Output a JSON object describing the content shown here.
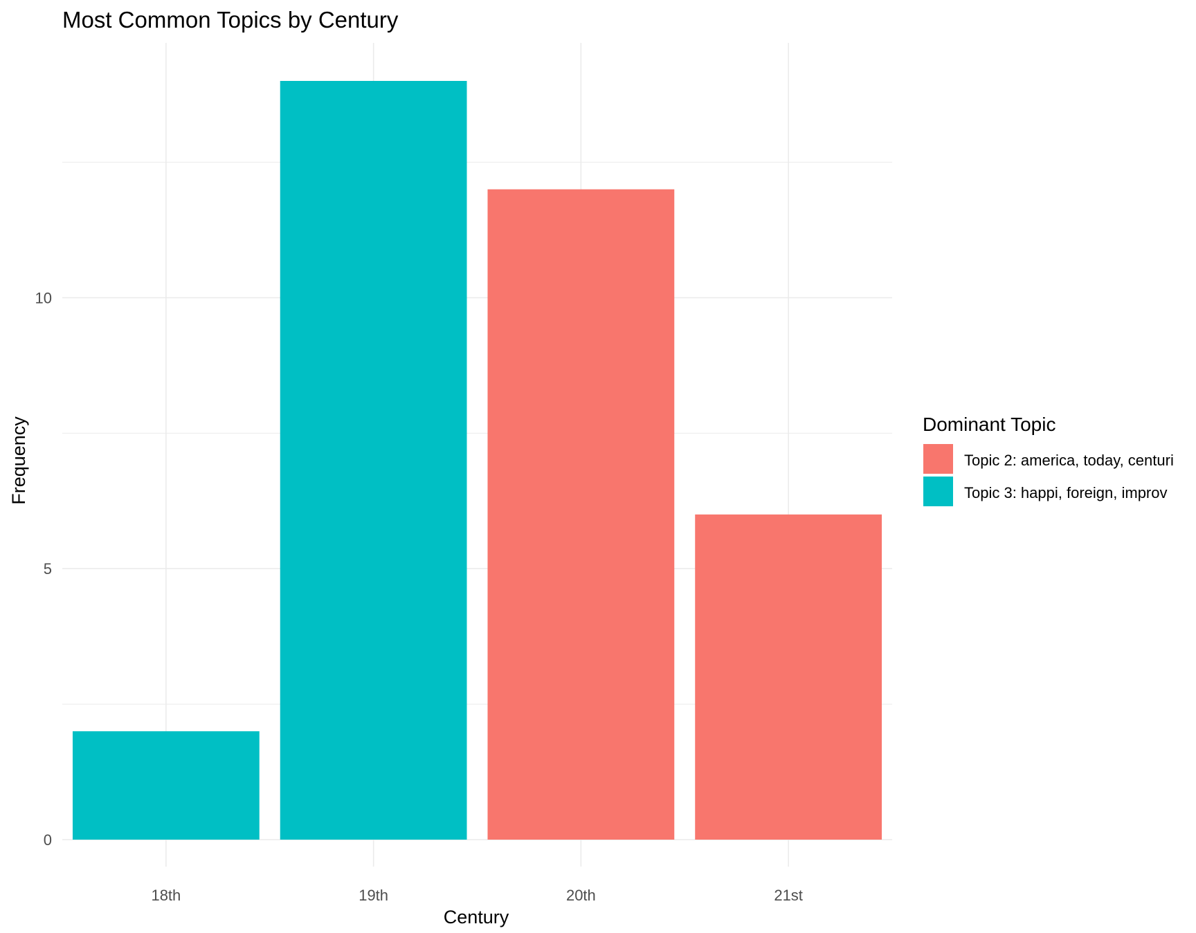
{
  "chart_data": {
    "type": "bar",
    "title": "Most Common Topics by Century",
    "xlabel": "Century",
    "ylabel": "Frequency",
    "categories": [
      "18th",
      "19th",
      "20th",
      "21st"
    ],
    "values": [
      2,
      14,
      12,
      6
    ],
    "bar_topics": [
      1,
      1,
      0,
      0
    ],
    "ylim": [
      0,
      14.7
    ],
    "y_ticks": [
      0,
      5,
      10
    ],
    "y_tick_labels": [
      "0",
      "5",
      "10"
    ],
    "y_minor_ticks": [
      2.5,
      7.5,
      12.5
    ],
    "grid": true,
    "legend": {
      "title": "Dominant Topic",
      "placement": "right",
      "entries": [
        {
          "label": "Topic 2: america, today, centuri",
          "color": "#F8766D"
        },
        {
          "label": "Topic 3: happi, foreign, improv",
          "color": "#00BFC4"
        }
      ]
    },
    "colors": {
      "gridline": "#EBEBEB",
      "axis_text": "#4D4D4D",
      "title_text": "#000000"
    }
  }
}
